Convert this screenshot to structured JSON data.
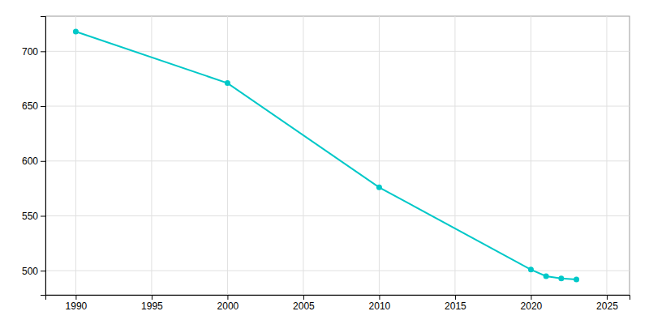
{
  "chart_data": {
    "type": "line",
    "x": [
      1990,
      2000,
      2010,
      2020,
      2021,
      2022,
      2023
    ],
    "values": [
      718,
      671,
      576,
      501,
      495,
      493,
      492
    ],
    "color": "#00C8C8",
    "marker": "circle",
    "xlim": [
      1988,
      2026.5
    ],
    "ylim": [
      478,
      732
    ],
    "xticks": [
      1990,
      1995,
      2000,
      2005,
      2010,
      2015,
      2020,
      2025
    ],
    "yticks": [
      500,
      550,
      600,
      650,
      700
    ],
    "grid": true
  }
}
